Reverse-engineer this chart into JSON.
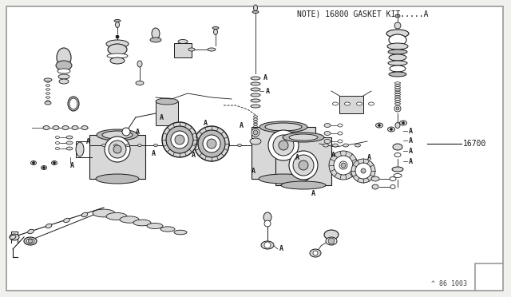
{
  "note_text": "NOTE) 16800 GASKET KIT.....A",
  "part_number": "16700",
  "diagram_code": "^ 86 1003",
  "bg_color": "#f0f0ec",
  "border_color": "#999999",
  "line_color": "#1a1a1a",
  "white": "#ffffff",
  "light_gray": "#d8d8d8",
  "mid_gray": "#bbbbbb",
  "fig_width": 6.4,
  "fig_height": 3.72,
  "dpi": 100
}
